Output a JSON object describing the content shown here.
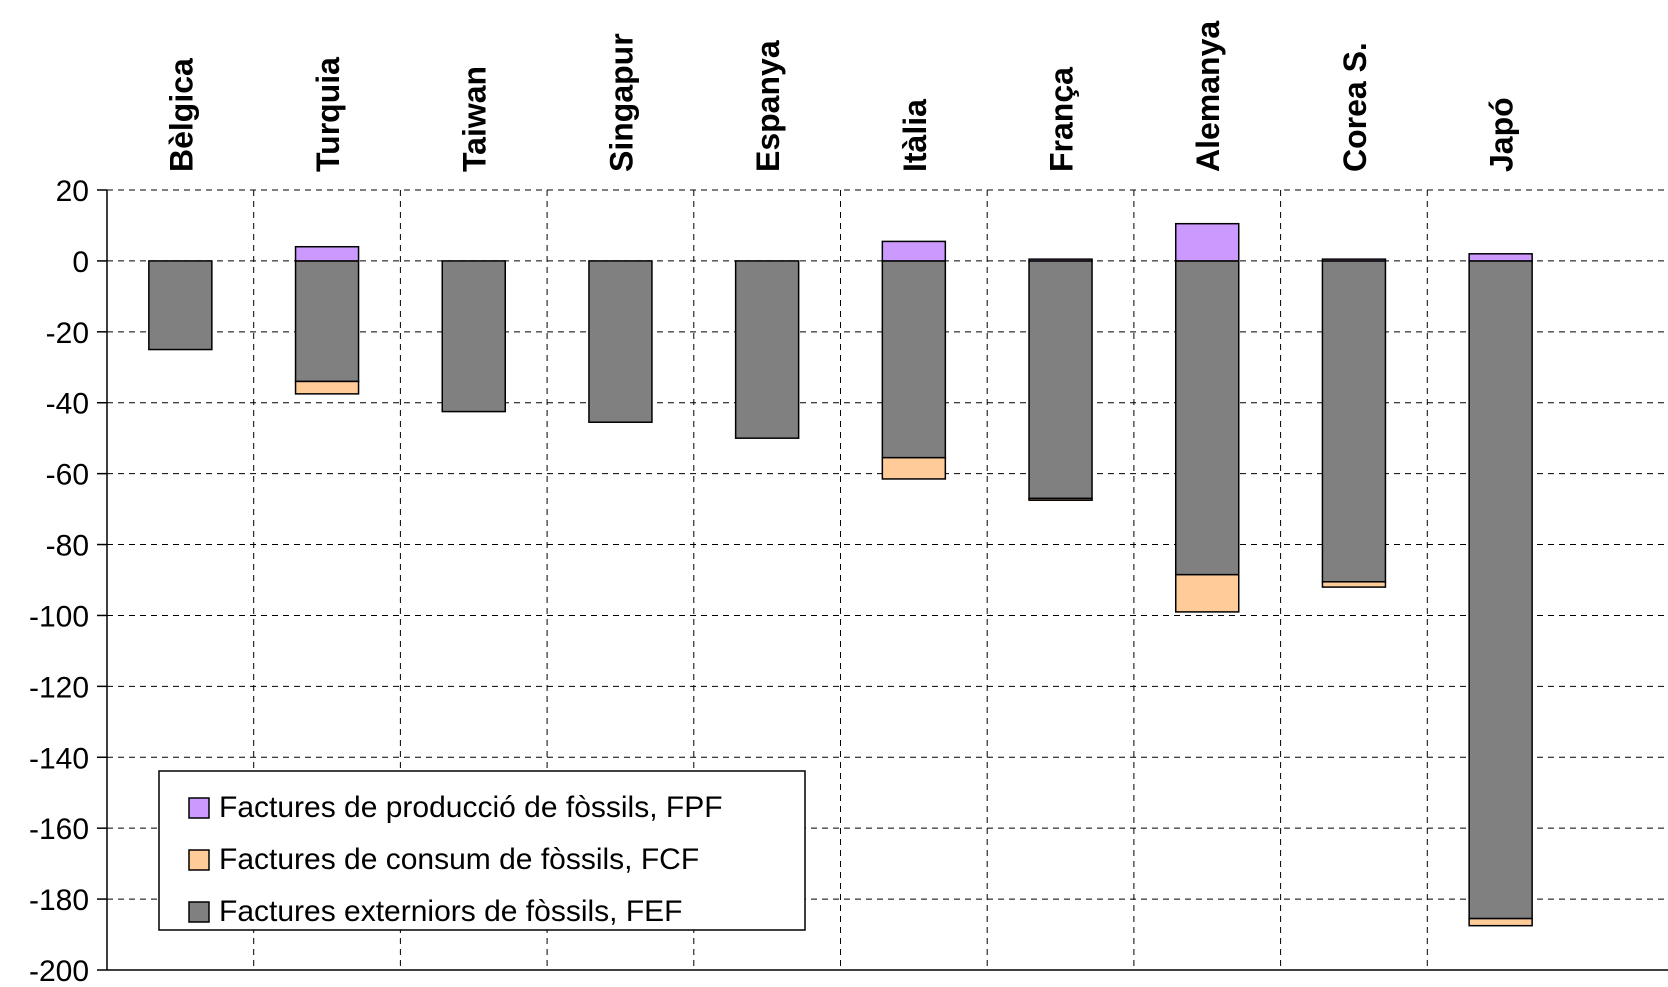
{
  "chart_data": {
    "type": "bar",
    "stacked": true,
    "categories": [
      "Bèlgica",
      "Turquia",
      "Taiwan",
      "Singapur",
      "Espanya",
      "Itàlia",
      "França",
      "Alemanya",
      "Corea S.",
      "Japó"
    ],
    "series": [
      {
        "name": "Factures de producció de fòssils, FPF",
        "color": "#cc99ff",
        "values": [
          0,
          4,
          0,
          0,
          0,
          5.5,
          0.5,
          10.5,
          0.5,
          2
        ]
      },
      {
        "name": "Factures de consum de fòssils, FCF",
        "color": "#ffcc99",
        "values": [
          0,
          -3.5,
          0,
          0,
          0,
          -6,
          -0.5,
          -10.5,
          -1.5,
          -2
        ]
      },
      {
        "name": "Factures externiors de fòssils, FEF",
        "color": "#808080",
        "values": [
          -25,
          -34,
          -42.5,
          -45.5,
          -50,
          -55.5,
          -67,
          -88.5,
          -90.5,
          -185.5
        ]
      }
    ],
    "ylim": [
      -200,
      20
    ],
    "yticks": [
      20,
      0,
      -20,
      -40,
      -60,
      -80,
      -100,
      -120,
      -140,
      -160,
      -180,
      -200
    ],
    "category_labels_position": "top",
    "grid": true,
    "legend_position": "bottom-left"
  }
}
